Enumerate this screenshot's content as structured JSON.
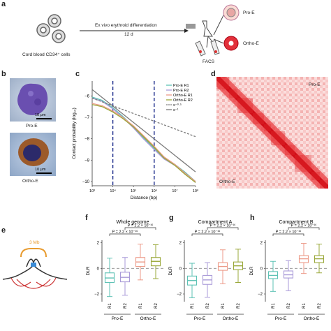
{
  "panels": {
    "a": "a",
    "b": "b",
    "c": "c",
    "d": "d",
    "e": "e",
    "f": "f",
    "g": "g",
    "h": "h"
  },
  "panel_a": {
    "source_label": "Cord blood CD34⁺ cells",
    "arrow_label_top": "Ex vivo erythroid differentiation",
    "arrow_label_bottom": "12 d",
    "facs_label": "FACS",
    "pro_label": "Pro-E",
    "ortho_label": "Ortho-E"
  },
  "panel_b": {
    "pro_label": "Pro-E",
    "ortho_label": "Ortho-E",
    "scale_pro": "10 μm",
    "scale_ortho": "10 μm"
  },
  "panel_d": {
    "pro_label": "Pro-E",
    "ortho_label": "Ortho-E",
    "colors": {
      "low": "#ffffff",
      "high": "#e8141c"
    }
  },
  "panel_e": {
    "label": "3 Mb"
  },
  "colors": {
    "proR1": "#5ec2b5",
    "proR2": "#a99ad8",
    "orthoR1": "#ec9a88",
    "orthoR2": "#9aa83a",
    "ref": "#7a7a7a"
  },
  "chart_data": [
    {
      "type": "line",
      "xlabel": "Distance (bp)",
      "ylabel": "Contact probability (log₁₀)",
      "xscale": "log",
      "xlim": [
        1000,
        100000000
      ],
      "ylim": [
        -10.2,
        -5.3
      ],
      "xticks": [
        "10³",
        "10⁴",
        "10⁵",
        "10⁶",
        "10⁷",
        "10⁸"
      ],
      "yticks": [
        -10,
        -9,
        -8,
        -7,
        -6
      ],
      "vlines": [
        10000,
        1000000
      ],
      "legend": "top-right",
      "series": [
        {
          "name": "Pro-E R1",
          "x": [
            1000,
            3000,
            10000,
            30000,
            100000,
            300000,
            1000000,
            3000000,
            10000000,
            30000000,
            100000000
          ],
          "y": [
            -6.05,
            -6.2,
            -6.55,
            -6.95,
            -7.45,
            -7.95,
            -8.45,
            -8.9,
            -9.2,
            -9.55,
            -10.0
          ]
        },
        {
          "name": "Pro-E R2",
          "x": [
            1000,
            3000,
            10000,
            30000,
            100000,
            300000,
            1000000,
            3000000,
            10000000,
            30000000,
            100000000
          ],
          "y": [
            -6.1,
            -6.25,
            -6.6,
            -7.0,
            -7.5,
            -8.0,
            -8.5,
            -8.95,
            -9.25,
            -9.6,
            -10.05
          ]
        },
        {
          "name": "Ortho-E R1",
          "x": [
            1000,
            3000,
            10000,
            30000,
            100000,
            300000,
            1000000,
            3000000,
            10000000,
            30000000,
            100000000
          ],
          "y": [
            -6.35,
            -6.45,
            -6.7,
            -7.0,
            -7.4,
            -7.85,
            -8.35,
            -8.85,
            -9.2,
            -9.6,
            -10.0
          ]
        },
        {
          "name": "Ortho-E R2",
          "x": [
            1000,
            3000,
            10000,
            30000,
            100000,
            300000,
            1000000,
            3000000,
            10000000,
            30000000,
            100000000
          ],
          "y": [
            -6.4,
            -6.5,
            -6.75,
            -7.05,
            -7.45,
            -7.9,
            -8.4,
            -8.9,
            -9.25,
            -9.65,
            -10.05
          ]
        },
        {
          "name": "s⁻⁰·⁵",
          "x": [
            1000,
            100000000
          ],
          "y": [
            -6.1,
            -7.9
          ]
        },
        {
          "name": "s⁻¹",
          "x": [
            1000,
            100000000
          ],
          "y": [
            -5.7,
            -9.55
          ]
        }
      ]
    },
    {
      "type": "box",
      "title": "Whole genome",
      "ylabel": "DLR",
      "ylim": [
        -2.6,
        2.2
      ],
      "yticks": [
        -2,
        0,
        2
      ],
      "categories": [
        "R1",
        "R2",
        "R1",
        "R2"
      ],
      "groups": [
        "Pro-E",
        "Ortho-E"
      ],
      "annotations": [
        "P = 2.2 × 10⁻¹⁶",
        "P = 2.2 × 10⁻¹⁶"
      ],
      "boxes": [
        {
          "q1": -1.1,
          "median": -0.75,
          "q3": -0.35,
          "lo": -2.2,
          "hi": 0.8
        },
        {
          "q1": -1.05,
          "median": -0.7,
          "q3": -0.3,
          "lo": -2.1,
          "hi": 0.85
        },
        {
          "q1": 0.15,
          "median": 0.5,
          "q3": 0.85,
          "lo": -0.9,
          "hi": 1.9
        },
        {
          "q1": 0.2,
          "median": 0.55,
          "q3": 0.85,
          "lo": -0.8,
          "hi": 1.85
        }
      ]
    },
    {
      "type": "box",
      "title": "Compartment A",
      "ylabel": "DLR",
      "ylim": [
        -2.6,
        2.2
      ],
      "yticks": [
        -2,
        0,
        2
      ],
      "categories": [
        "R1",
        "R2",
        "R1",
        "R2"
      ],
      "groups": [
        "Pro-E",
        "Ortho-E"
      ],
      "annotations": [
        "P = 2.2 × 10⁻¹⁶",
        "P = 2.2 × 10⁻¹⁶"
      ],
      "boxes": [
        {
          "q1": -1.3,
          "median": -0.95,
          "q3": -0.6,
          "lo": -2.3,
          "hi": 0.4
        },
        {
          "q1": -1.25,
          "median": -0.9,
          "q3": -0.55,
          "lo": -2.25,
          "hi": 0.45
        },
        {
          "q1": -0.15,
          "median": 0.15,
          "q3": 0.45,
          "lo": -1.2,
          "hi": 1.45
        },
        {
          "q1": -0.1,
          "median": 0.2,
          "q3": 0.5,
          "lo": -1.1,
          "hi": 1.5
        }
      ]
    },
    {
      "type": "box",
      "title": "Compartment B",
      "ylabel": "DLR",
      "ylim": [
        -2.6,
        2.2
      ],
      "yticks": [
        -2,
        0,
        2
      ],
      "categories": [
        "R1",
        "R2",
        "R1",
        "R2"
      ],
      "groups": [
        "Pro-E",
        "Ortho-E"
      ],
      "annotations": [
        "P = 2.2 × 10⁻¹⁶",
        "P = 2.2 × 10⁻¹⁶"
      ],
      "boxes": [
        {
          "q1": -0.8,
          "median": -0.55,
          "q3": -0.25,
          "lo": -1.8,
          "hi": 0.55
        },
        {
          "q1": -0.75,
          "median": -0.5,
          "q3": -0.2,
          "lo": -1.75,
          "hi": 0.6
        },
        {
          "q1": 0.45,
          "median": 0.75,
          "q3": 1.0,
          "lo": -0.4,
          "hi": 1.95
        },
        {
          "q1": 0.45,
          "median": 0.75,
          "q3": 1.0,
          "lo": -0.35,
          "hi": 1.9
        }
      ]
    }
  ]
}
